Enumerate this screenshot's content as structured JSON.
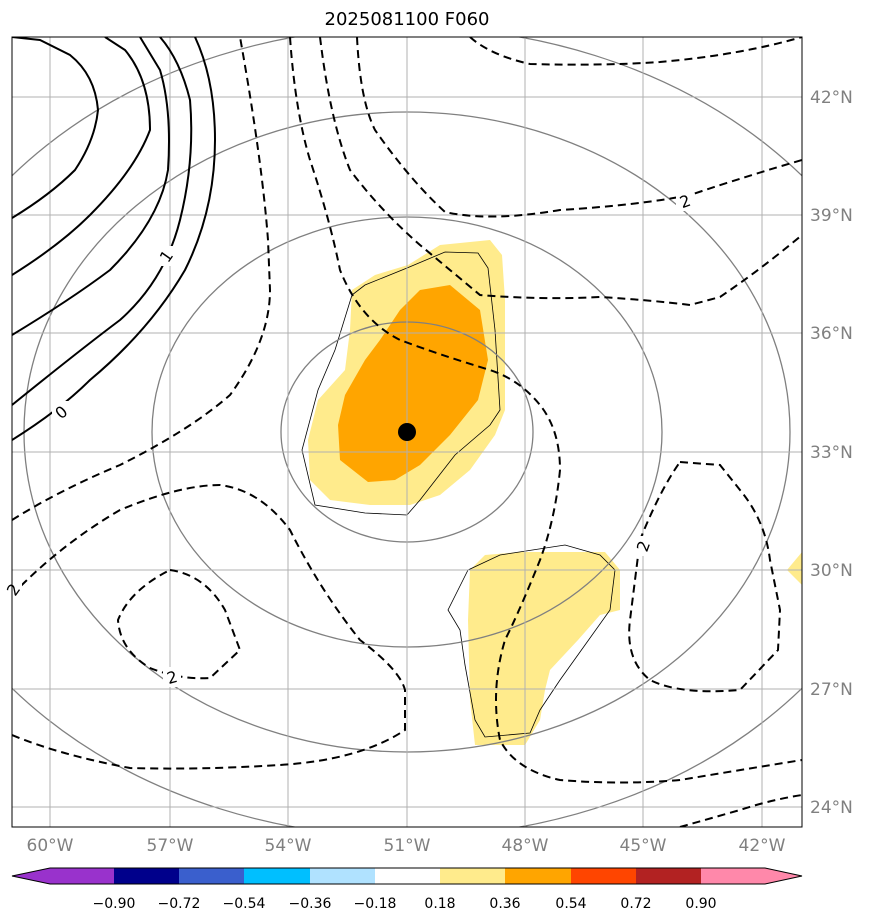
{
  "title": "2025081100 F060",
  "map": {
    "lon_labels": [
      "60°W",
      "57°W",
      "54°W",
      "51°W",
      "48°W",
      "45°W",
      "42°W"
    ],
    "lat_labels": [
      "42°N",
      "39°N",
      "36°N",
      "33°N",
      "30°N",
      "27°N",
      "24°N"
    ],
    "contour_labels": [
      "0",
      "1",
      "2",
      "2",
      "2",
      "2"
    ],
    "center_marker": {
      "lon": -51.0,
      "lat": 33.5
    }
  },
  "colorbar": {
    "tick_labels": [
      "−0.90",
      "−0.72",
      "−0.54",
      "−0.36",
      "−0.18",
      "0.18",
      "0.36",
      "0.54",
      "0.72",
      "0.90"
    ],
    "colors": [
      "#9932cc",
      "#00008b",
      "#3a5fcd",
      "#00bfff",
      "#b0e2ff",
      "#ffffff",
      "#ffeb8c",
      "#ffa500",
      "#ff4500",
      "#b22222",
      "#ff88aa"
    ]
  }
}
